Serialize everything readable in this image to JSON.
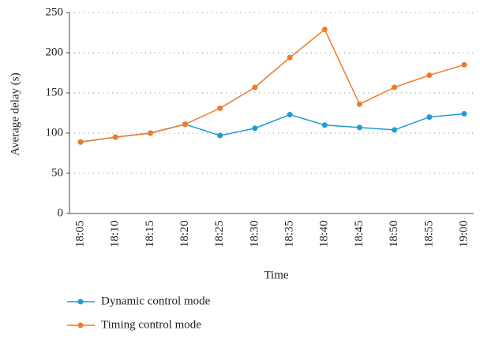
{
  "chart_data": {
    "type": "line",
    "x_label": "Time",
    "y_label": "Average delay (s)",
    "categories": [
      "18:05",
      "18:10",
      "18:15",
      "18:20",
      "18:25",
      "18:30",
      "18:35",
      "18:40",
      "18:45",
      "18:50",
      "18:55",
      "19:00"
    ],
    "series": [
      {
        "name": "Dynamic control mode",
        "color": "#1f9bd1",
        "values": [
          89,
          95,
          100,
          111,
          97,
          106,
          123,
          110,
          107,
          104,
          120,
          124
        ]
      },
      {
        "name": "Timing control mode",
        "color": "#f07a2a",
        "values": [
          89,
          95,
          100,
          111,
          131,
          157,
          194,
          229,
          136,
          157,
          172,
          185
        ]
      }
    ],
    "ylim": [
      0,
      250
    ],
    "yticks": [
      0,
      50,
      100,
      150,
      200,
      250
    ],
    "grid": true
  }
}
